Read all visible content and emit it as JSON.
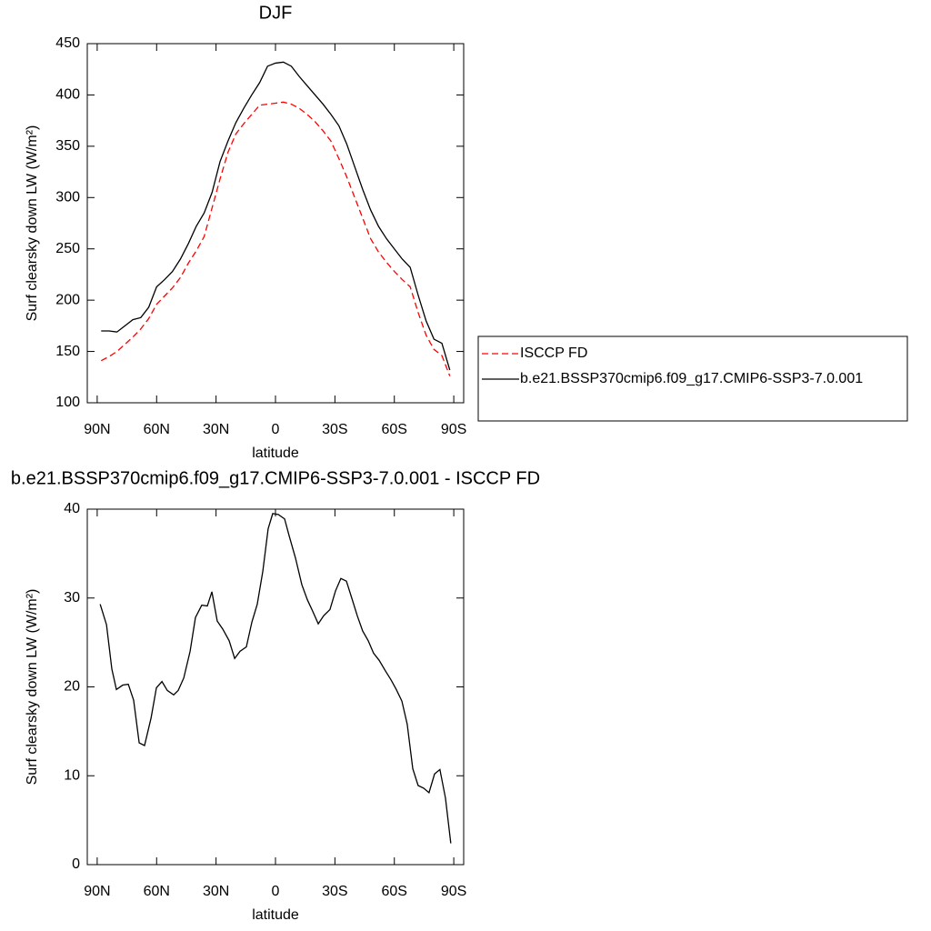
{
  "chart_data": [
    {
      "type": "line",
      "title": "DJF",
      "xlabel": "latitude",
      "ylabel": "Surf clearsky down LW (W/m²)",
      "x": [
        88,
        84,
        80,
        76,
        72,
        68,
        64,
        60,
        56,
        52,
        48,
        44,
        40,
        36,
        32,
        28,
        24,
        20,
        16,
        12,
        8,
        4,
        0,
        -4,
        -8,
        -12,
        -16,
        -20,
        -24,
        -28,
        -32,
        -36,
        -40,
        -44,
        -48,
        -52,
        -56,
        -60,
        -64,
        -68,
        -72,
        -76,
        -80,
        -84,
        -88
      ],
      "series": [
        {
          "name": "ISCCP FD",
          "color": "#ff0000",
          "dash": "dashed",
          "values": [
            141,
            145,
            150,
            157,
            164,
            172,
            182,
            196,
            204,
            212,
            222,
            236,
            248,
            262,
            290,
            318,
            344,
            362,
            372,
            381,
            390,
            391,
            392,
            393,
            391,
            387,
            381,
            374,
            365,
            355,
            338,
            320,
            300,
            280,
            260,
            247,
            237,
            228,
            220,
            213,
            188,
            166,
            152,
            146,
            126
          ]
        },
        {
          "name": "b.e21.BSSP370cmip6.f09_g17.CMIP6-SSP3-7.0.001",
          "color": "#000000",
          "dash": "solid",
          "values": [
            170,
            170,
            169,
            175,
            181,
            183,
            193,
            213,
            220,
            228,
            240,
            255,
            272,
            285,
            305,
            335,
            355,
            373,
            387,
            400,
            412,
            428,
            431,
            432,
            428,
            418,
            409,
            400,
            391,
            381,
            370,
            352,
            330,
            308,
            288,
            272,
            260,
            250,
            240,
            232,
            205,
            180,
            162,
            158,
            132
          ]
        }
      ],
      "xlim": [
        95,
        -95
      ],
      "xticks": [
        {
          "value": 90,
          "label": "90N"
        },
        {
          "value": 60,
          "label": "60N"
        },
        {
          "value": 30,
          "label": "30N"
        },
        0,
        {
          "value": -30,
          "label": "30S"
        },
        {
          "value": -60,
          "label": "60S"
        },
        {
          "value": -90,
          "label": "90S"
        }
      ],
      "ylim": [
        100,
        450
      ],
      "yticks": [
        100,
        150,
        200,
        250,
        300,
        350,
        400,
        450
      ],
      "legend": "right"
    },
    {
      "type": "line",
      "title": "b.e21.BSSP370cmip6.f09_g17.CMIP6-SSP3-7.0.001 - ISCCP FD",
      "xlabel": "latitude",
      "ylabel": "Surf clearsky down LW (W/m²)",
      "x": [
        88.5,
        85.3,
        82.6,
        80.3,
        77.1,
        74.3,
        71.6,
        68.8,
        66.1,
        62.8,
        60.1,
        57.3,
        54.6,
        51.4,
        49.1,
        46.3,
        43.1,
        40.4,
        37.2,
        34.4,
        32.1,
        29.4,
        26.6,
        23.4,
        20.6,
        17.9,
        14.7,
        11.9,
        9.2,
        6.4,
        3.7,
        1.4,
        -1.4,
        -4.6,
        -6.9,
        -10.1,
        -13.3,
        -16.1,
        -18.8,
        -21.6,
        -24.3,
        -27.5,
        -30.3,
        -33.0,
        -35.8,
        -38.5,
        -41.3,
        -44.0,
        -46.8,
        -49.5,
        -52.3,
        -55.5,
        -58.3,
        -61.0,
        -63.8,
        -66.5,
        -69.3,
        -72.0,
        -74.8,
        -77.5,
        -80.3,
        -83.0,
        -85.8,
        -88.5
      ],
      "values": [
        29.3,
        27,
        22,
        19.7,
        20.2,
        20.3,
        18.5,
        13.7,
        13.4,
        16.5,
        19.9,
        20.6,
        19.6,
        19.1,
        19.6,
        21,
        24,
        27.8,
        29.2,
        29.1,
        30.7,
        27.4,
        26.5,
        25.2,
        23.2,
        24,
        24.5,
        27.3,
        29.3,
        33,
        37.8,
        39.5,
        39.4,
        38.9,
        37,
        34.5,
        31.5,
        29.8,
        28.5,
        27.1,
        28,
        28.7,
        30.8,
        32.2,
        31.9,
        30,
        28,
        26.3,
        25.2,
        23.8,
        23,
        21.8,
        20.8,
        19.7,
        18.4,
        15.8,
        10.8,
        8.9,
        8.6,
        8.1,
        10.2,
        10.7,
        7.5,
        2.4
      ],
      "color": "#000000",
      "xlim": [
        95,
        -95
      ],
      "xticks": [
        {
          "value": 90,
          "label": "90N"
        },
        {
          "value": 60,
          "label": "60N"
        },
        {
          "value": 30,
          "label": "30N"
        },
        0,
        {
          "value": -30,
          "label": "30S"
        },
        {
          "value": -60,
          "label": "60S"
        },
        {
          "value": -90,
          "label": "90S"
        }
      ],
      "ylim": [
        0,
        40
      ],
      "yticks": [
        0,
        10,
        20,
        30,
        40
      ]
    }
  ]
}
